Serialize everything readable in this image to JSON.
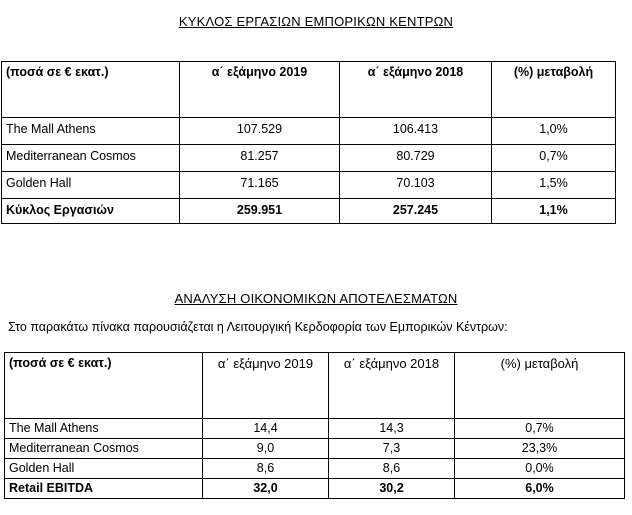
{
  "section1": {
    "title": "ΚΥΚΛΟΣ ΕΡΓΑΣΙΩΝ ΕΜΠΟΡΙΚΩΝ ΚΕΝΤΡΩΝ",
    "table": {
      "headers": [
        "(ποσά σε € εκατ.)",
        "α΄ εξάμηνο  2019",
        "α΄ εξάμηνο 2018",
        "(%) μεταβολή"
      ],
      "rows": [
        [
          "The Mall Athens",
          "107.529",
          "106.413",
          "1,0%"
        ],
        [
          "Mediterranean Cosmos",
          "81.257",
          "80.729",
          "0,7%"
        ],
        [
          "Golden Hall",
          "71.165",
          "70.103",
          "1,5%"
        ]
      ],
      "total": [
        "Κύκλος Εργασιών",
        "259.951",
        "257.245",
        "1,1%"
      ]
    }
  },
  "section2": {
    "title": "ΑΝΑΛΥΣΗ ΟΙΚΟΝΟΜΙΚΩΝ ΑΠΟΤΕΛΕΣΜΑΤΩΝ",
    "intro": "Στο παρακάτω πίνακα παρουσιάζεται η Λειτουργική Κερδοφορία των Εμπορικών Κέντρων:",
    "table": {
      "headers": [
        "(ποσά σε € εκατ.)",
        "α΄ εξάμηνο  2019",
        "α΄ εξάμηνο  2018",
        "(%) μεταβολή"
      ],
      "rows": [
        [
          "The Mall Athens",
          "14,4",
          "14,3",
          "0,7%"
        ],
        [
          "Mediterranean Cosmos",
          "9,0",
          "7,3",
          "23,3%"
        ],
        [
          "Golden Hall",
          "8,6",
          "8,6",
          "0,0%"
        ]
      ],
      "total": [
        "Retail EBITDA",
        "32,0",
        "30,2",
        "6,0%"
      ]
    }
  }
}
